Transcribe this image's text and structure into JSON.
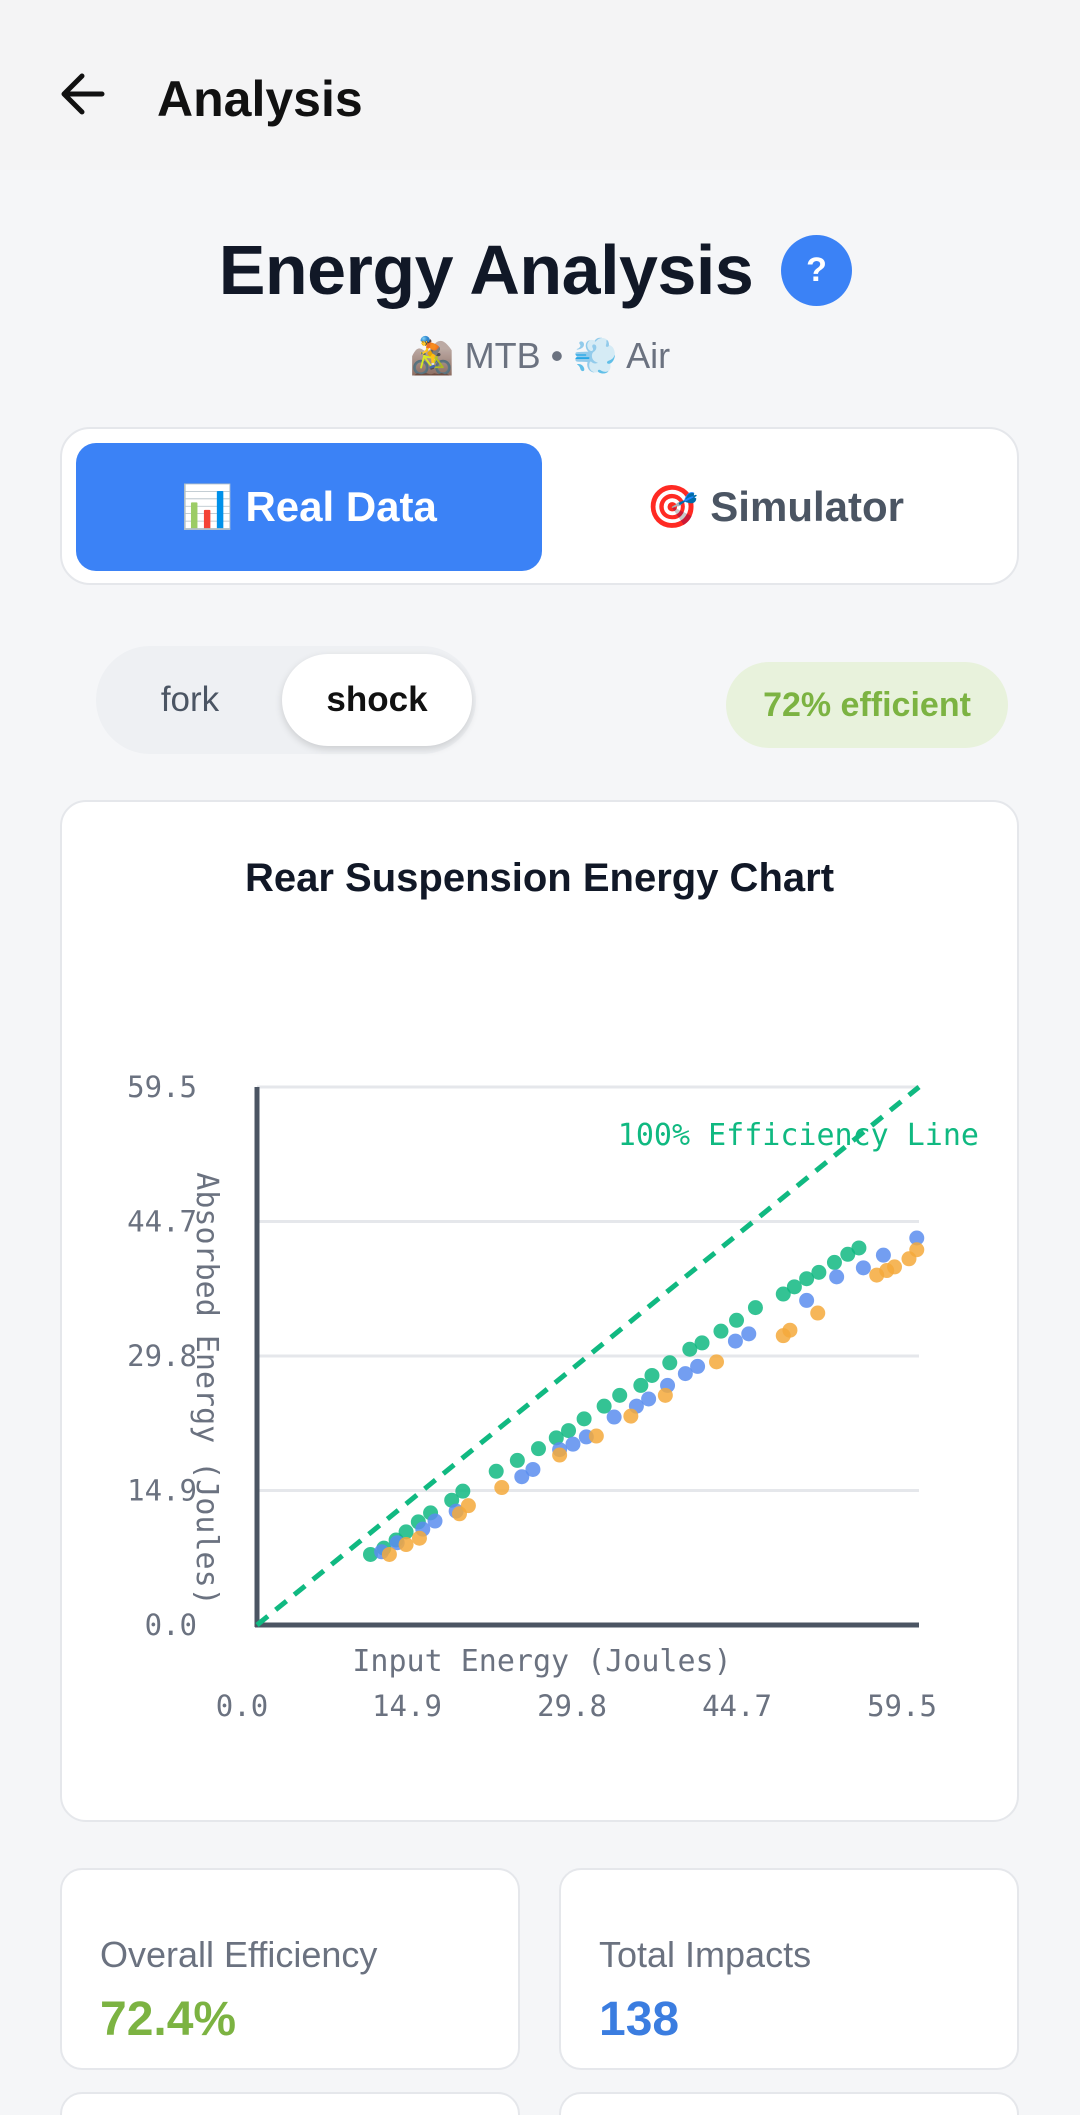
{
  "topbar": {
    "title": "Analysis",
    "back_icon": "arrow-left-icon"
  },
  "hero": {
    "title": "Energy Analysis",
    "help_label": "?",
    "subtitle": "🚵 MTB • 💨 Air"
  },
  "mode_tabs": [
    {
      "emoji": "📊",
      "label": "Real Data",
      "active": true
    },
    {
      "emoji": "🎯",
      "label": "Simulator",
      "active": false
    }
  ],
  "suspension_toggle": {
    "options": [
      "fork",
      "shock"
    ],
    "selected": "shock"
  },
  "efficiency_badge": "72% efficient",
  "chart_data": {
    "type": "scatter",
    "title": "Rear Suspension Energy Chart",
    "xlabel": "Input Energy (Joules)",
    "ylabel": "Absorbed Energy (Joules)",
    "xlim": [
      0.0,
      59.5
    ],
    "ylim": [
      0.0,
      59.5
    ],
    "xticks": [
      "0.0",
      "14.9",
      "29.8",
      "44.7",
      "59.5"
    ],
    "yticks": [
      "0.0",
      "14.9",
      "29.8",
      "44.7",
      "59.5"
    ],
    "reference_line": {
      "label": "100% Efficiency Line",
      "color": "#10b981"
    },
    "grid": true,
    "series": [
      {
        "color": "#10b981",
        "points": [
          [
            10.2,
            7.8
          ],
          [
            11.4,
            8.5
          ],
          [
            12.5,
            9.4
          ],
          [
            13.4,
            10.3
          ],
          [
            14.5,
            11.4
          ],
          [
            15.6,
            12.4
          ],
          [
            17.5,
            13.8
          ],
          [
            18.5,
            14.8
          ],
          [
            21.5,
            17.0
          ],
          [
            23.4,
            18.2
          ],
          [
            25.3,
            19.5
          ],
          [
            26.9,
            20.7
          ],
          [
            28.0,
            21.5
          ],
          [
            29.4,
            22.8
          ],
          [
            31.2,
            24.2
          ],
          [
            32.6,
            25.4
          ],
          [
            34.5,
            26.5
          ],
          [
            35.5,
            27.6
          ],
          [
            37.1,
            29.0
          ],
          [
            38.9,
            30.5
          ],
          [
            40.0,
            31.2
          ],
          [
            41.7,
            32.5
          ],
          [
            43.1,
            33.7
          ],
          [
            44.8,
            35.1
          ],
          [
            47.3,
            36.6
          ],
          [
            48.3,
            37.4
          ],
          [
            49.4,
            38.3
          ],
          [
            50.5,
            39.0
          ],
          [
            51.9,
            40.1
          ],
          [
            53.1,
            41.0
          ],
          [
            54.1,
            41.7
          ]
        ]
      },
      {
        "color": "#5b8def",
        "points": [
          [
            11.2,
            8.1
          ],
          [
            12.6,
            9.1
          ],
          [
            14.9,
            10.6
          ],
          [
            16.0,
            11.5
          ],
          [
            17.9,
            12.6
          ],
          [
            23.8,
            16.4
          ],
          [
            24.8,
            17.2
          ],
          [
            27.2,
            19.4
          ],
          [
            28.4,
            20.0
          ],
          [
            29.6,
            20.8
          ],
          [
            32.1,
            23.0
          ],
          [
            34.1,
            24.2
          ],
          [
            35.2,
            25.0
          ],
          [
            36.9,
            26.5
          ],
          [
            38.5,
            27.8
          ],
          [
            39.6,
            28.6
          ],
          [
            43.0,
            31.4
          ],
          [
            44.2,
            32.2
          ],
          [
            49.4,
            35.9
          ],
          [
            52.1,
            38.5
          ],
          [
            54.5,
            39.5
          ],
          [
            56.3,
            40.9
          ],
          [
            59.3,
            42.8
          ]
        ]
      },
      {
        "color": "#f5a93b",
        "points": [
          [
            11.9,
            7.8
          ],
          [
            13.4,
            8.9
          ],
          [
            14.6,
            9.6
          ],
          [
            18.2,
            12.3
          ],
          [
            19.0,
            13.2
          ],
          [
            22.0,
            15.2
          ],
          [
            27.2,
            18.8
          ],
          [
            30.5,
            20.9
          ],
          [
            33.6,
            23.1
          ],
          [
            36.7,
            25.4
          ],
          [
            41.3,
            29.1
          ],
          [
            47.3,
            32.0
          ],
          [
            47.9,
            32.6
          ],
          [
            50.4,
            34.5
          ],
          [
            55.7,
            38.7
          ],
          [
            56.6,
            39.2
          ],
          [
            57.3,
            39.6
          ],
          [
            58.6,
            40.5
          ],
          [
            59.3,
            41.5
          ]
        ]
      }
    ]
  },
  "stats": [
    {
      "label": "Overall Efficiency",
      "value": "72.4%"
    },
    {
      "label": "Total Impacts",
      "value": "138"
    }
  ]
}
